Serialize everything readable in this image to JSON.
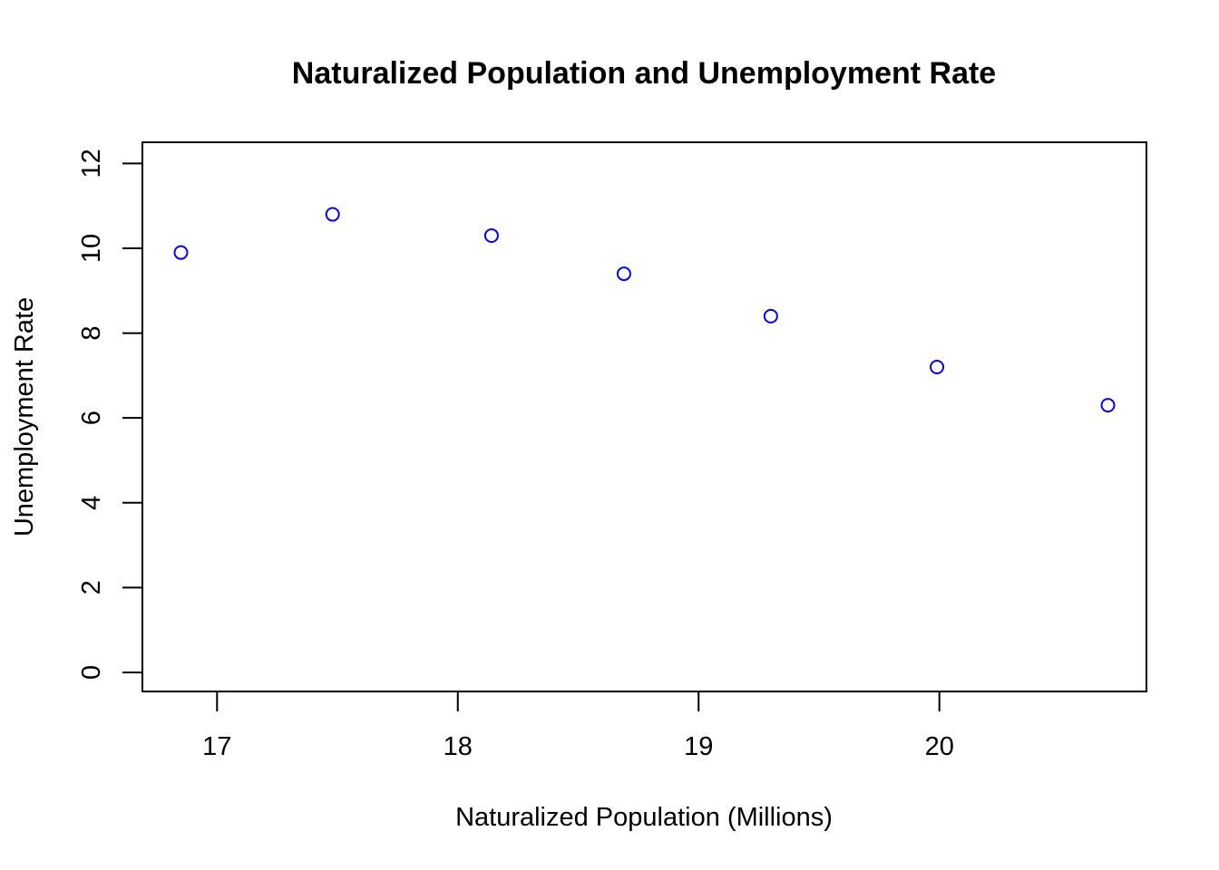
{
  "chart_data": {
    "type": "scatter",
    "title": "Naturalized Population and Unemployment Rate",
    "xlabel": "Naturalized Population (Millions)",
    "ylabel": "Unemployment Rate",
    "xlim": [
      16.69,
      20.86
    ],
    "ylim": [
      -0.45,
      12.5
    ],
    "xticks": [
      17,
      18,
      19,
      20
    ],
    "yticks": [
      0,
      2,
      4,
      6,
      8,
      10,
      12
    ],
    "grid": false,
    "legend": "none",
    "point_color": "#0000ff",
    "points": [
      {
        "x": 16.85,
        "y": 9.9
      },
      {
        "x": 17.48,
        "y": 10.8
      },
      {
        "x": 18.14,
        "y": 10.3
      },
      {
        "x": 18.69,
        "y": 9.4
      },
      {
        "x": 19.3,
        "y": 8.4
      },
      {
        "x": 19.99,
        "y": 7.2
      },
      {
        "x": 20.7,
        "y": 6.3
      }
    ]
  }
}
